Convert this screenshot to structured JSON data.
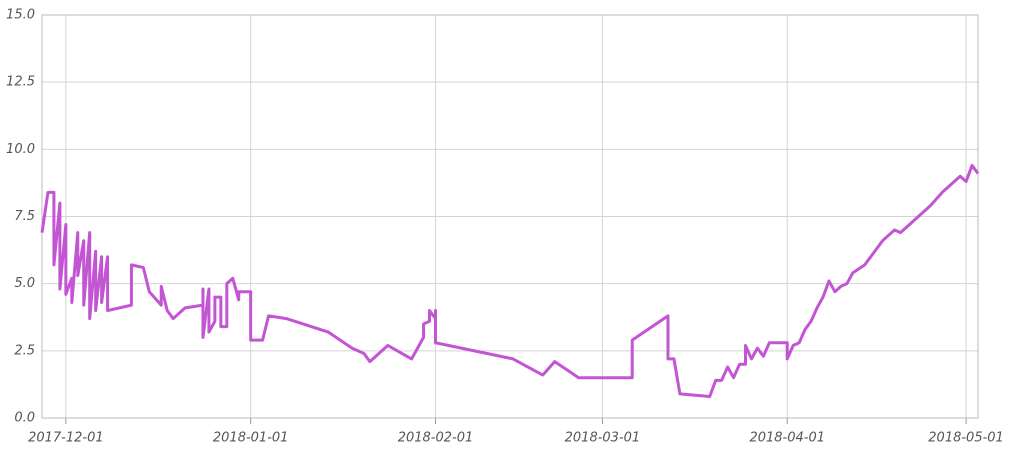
{
  "chart_data": {
    "type": "line",
    "color": "#c355d4",
    "grid": true,
    "x": [
      "2017-11-27",
      "2017-11-28",
      "2017-11-29",
      "2017-11-29",
      "2017-11-30",
      "2017-11-30",
      "2017-12-01",
      "2017-12-01",
      "2017-12-02",
      "2017-12-02",
      "2017-12-03",
      "2017-12-03",
      "2017-12-04",
      "2017-12-04",
      "2017-12-05",
      "2017-12-05",
      "2017-12-06",
      "2017-12-06",
      "2017-12-07",
      "2017-12-07",
      "2017-12-08",
      "2017-12-08",
      "2017-12-12",
      "2017-12-12",
      "2017-12-14",
      "2017-12-15",
      "2017-12-17",
      "2017-12-17",
      "2017-12-18",
      "2017-12-19",
      "2017-12-21",
      "2017-12-24",
      "2017-12-24",
      "2017-12-24",
      "2017-12-25",
      "2017-12-25",
      "2017-12-26",
      "2017-12-26",
      "2017-12-27",
      "2017-12-27",
      "2017-12-28",
      "2017-12-28",
      "2017-12-29",
      "2017-12-30",
      "2017-12-30",
      "2018-01-01",
      "2018-01-01",
      "2018-01-03",
      "2018-01-04",
      "2018-01-07",
      "2018-01-14",
      "2018-01-18",
      "2018-01-20",
      "2018-01-21",
      "2018-01-24",
      "2018-01-28",
      "2018-01-30",
      "2018-01-30",
      "2018-01-31",
      "2018-01-31",
      "2018-02-01",
      "2018-02-01",
      "2018-02-01",
      "2018-02-14",
      "2018-02-19",
      "2018-02-21",
      "2018-02-23",
      "2018-02-25",
      "2018-03-06",
      "2018-03-06",
      "2018-03-12",
      "2018-03-12",
      "2018-03-13",
      "2018-03-14",
      "2018-03-19",
      "2018-03-20",
      "2018-03-21",
      "2018-03-22",
      "2018-03-23",
      "2018-03-24",
      "2018-03-25",
      "2018-03-25",
      "2018-03-26",
      "2018-03-27",
      "2018-03-28",
      "2018-03-29",
      "2018-04-01",
      "2018-04-01",
      "2018-04-02",
      "2018-04-03",
      "2018-04-04",
      "2018-04-05",
      "2018-04-06",
      "2018-04-07",
      "2018-04-08",
      "2018-04-09",
      "2018-04-10",
      "2018-04-11",
      "2018-04-12",
      "2018-04-14",
      "2018-04-15",
      "2018-04-16",
      "2018-04-17",
      "2018-04-19",
      "2018-04-20",
      "2018-04-22",
      "2018-04-24",
      "2018-04-25",
      "2018-04-27",
      "2018-04-28",
      "2018-04-30",
      "2018-05-01",
      "2018-05-02",
      "2018-05-03"
    ],
    "values": [
      6.9,
      8.4,
      8.4,
      5.7,
      8.0,
      4.8,
      7.2,
      4.6,
      5.2,
      4.3,
      6.9,
      5.3,
      6.6,
      4.2,
      6.9,
      3.7,
      6.2,
      4.0,
      6.0,
      4.3,
      6.0,
      4.0,
      4.2,
      5.7,
      5.6,
      4.7,
      4.2,
      4.9,
      4.0,
      3.7,
      4.1,
      4.2,
      4.8,
      3.0,
      4.8,
      3.2,
      3.6,
      4.5,
      4.5,
      3.4,
      3.4,
      5.0,
      5.2,
      4.4,
      4.7,
      4.7,
      2.9,
      2.9,
      3.8,
      3.7,
      3.2,
      2.6,
      2.4,
      2.1,
      2.7,
      2.2,
      3.0,
      3.5,
      3.6,
      4.0,
      3.7,
      4.0,
      2.8,
      2.2,
      1.6,
      2.1,
      1.8,
      1.5,
      1.5,
      2.9,
      3.8,
      2.2,
      2.2,
      0.9,
      0.8,
      1.4,
      1.4,
      1.9,
      1.5,
      2.0,
      2.0,
      2.7,
      2.2,
      2.6,
      2.3,
      2.8,
      2.8,
      2.2,
      2.7,
      2.8,
      3.3,
      3.6,
      4.1,
      4.5,
      5.1,
      4.7,
      4.9,
      5.0,
      5.4,
      5.7,
      6.0,
      6.3,
      6.6,
      7.0,
      6.9,
      7.3,
      7.7,
      7.9,
      8.4,
      8.6,
      9.0,
      8.8,
      9.4,
      9.1
    ],
    "xlim": [
      "2017-11-27",
      "2018-05-03"
    ],
    "xticks": [
      "2017-12-01",
      "2018-01-01",
      "2018-02-01",
      "2018-03-01",
      "2018-04-01",
      "2018-05-01"
    ],
    "ylim": [
      0,
      15
    ],
    "yticks": [
      {
        "value": 0,
        "label": "0.0"
      },
      2.5,
      {
        "value": 5,
        "label": "5.0"
      },
      7.5,
      {
        "value": 10,
        "label": "10.0"
      },
      12.5,
      {
        "value": 15,
        "label": "15.0"
      }
    ]
  }
}
